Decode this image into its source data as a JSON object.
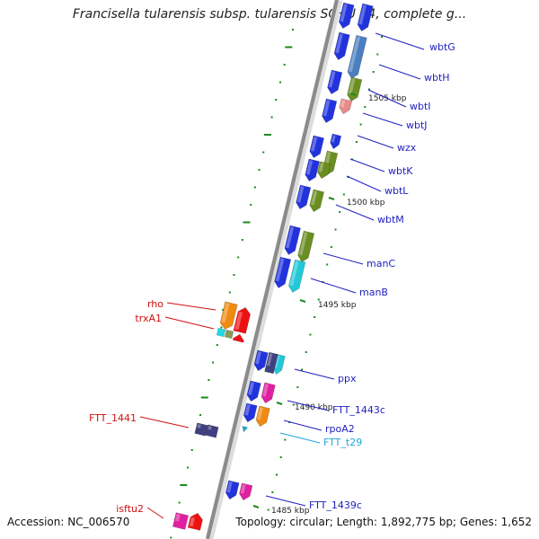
{
  "title": "Francisella tularensis subsp. tularensis SCHU S4, complete g...",
  "footer": {
    "accession": "Accession: NC_006570",
    "topology": "Topology: circular; Length: 1,892,775 bp; Genes: 1,652"
  },
  "colors": {
    "background": "#ffffff",
    "backbone": "#8a8a8a",
    "forward_label": "#1f1fbf",
    "reverse_label": "#d01010",
    "rna_label": "#22a6e0",
    "tick": "#1c8a1c"
  },
  "scale_marks": [
    "1505 kbp",
    "1500 kbp",
    "1495 kbp",
    "1490 kbp",
    "1485 kbp"
  ],
  "forward_genes": [
    {
      "name": "wbtG",
      "color": "#2233dd"
    },
    {
      "name": "wbtH",
      "color": "#4a7fc0"
    },
    {
      "name": "wbtI",
      "color": "#6b8e23"
    },
    {
      "name": "wbtJ",
      "color": "#e88a8a"
    },
    {
      "name": "wzx",
      "color": "#2233dd"
    },
    {
      "name": "wbtK",
      "color": "#6b8e23"
    },
    {
      "name": "wbtL",
      "color": "#6b8e23"
    },
    {
      "name": "wbtM",
      "color": "#6b8e23"
    },
    {
      "name": "manC",
      "color": "#6b8e23"
    },
    {
      "name": "manB",
      "color": "#22c8d8"
    },
    {
      "name": "ppx",
      "color": "#22c8d8"
    },
    {
      "name": "FTT_1443c",
      "color": "#e020a0"
    },
    {
      "name": "rpoA2",
      "color": "#f08a10"
    },
    {
      "name": "FTT_t29",
      "color": "#22a6e0"
    },
    {
      "name": "FTT_1439c",
      "color": "#e020a0"
    }
  ],
  "reverse_genes": [
    {
      "name": "rho",
      "color": "#f08a10"
    },
    {
      "name": "trxA1",
      "color": "#ee1111"
    },
    {
      "name": "FTT_1441",
      "color": "#404080"
    },
    {
      "name": "isftu2",
      "color": "#e020a0"
    }
  ]
}
